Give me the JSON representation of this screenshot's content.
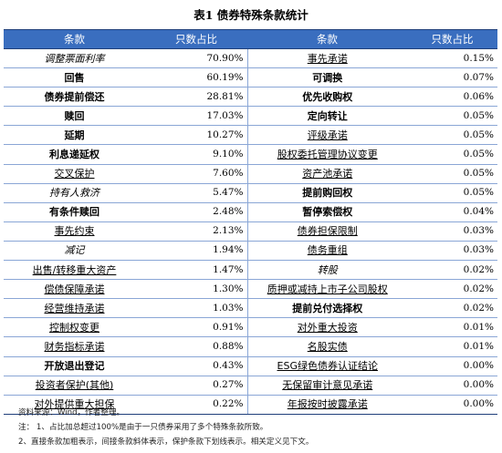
{
  "title": "表1   债券特殊条款统计",
  "headers": [
    "条款",
    "只数占比",
    "条款",
    "只数占比"
  ],
  "rows": [
    {
      "left": {
        "name": "调整票面利率",
        "pct": "70.90%",
        "style": "ital"
      },
      "right": {
        "name": "事先承诺",
        "pct": "0.15%",
        "style": "under"
      }
    },
    {
      "left": {
        "name": "回售",
        "pct": "60.19%",
        "style": "bold"
      },
      "right": {
        "name": "可调换",
        "pct": "0.07%",
        "style": "bold"
      }
    },
    {
      "left": {
        "name": "债券提前偿还",
        "pct": "28.81%",
        "style": "bold"
      },
      "right": {
        "name": "优先收购权",
        "pct": "0.06%",
        "style": "bold"
      }
    },
    {
      "left": {
        "name": "赎回",
        "pct": "17.03%",
        "style": "bold"
      },
      "right": {
        "name": "定向转让",
        "pct": "0.05%",
        "style": "bold"
      }
    },
    {
      "left": {
        "name": "延期",
        "pct": "10.27%",
        "style": "bold"
      },
      "right": {
        "name": "评级承诺",
        "pct": "0.05%",
        "style": "under"
      }
    },
    {
      "left": {
        "name": "利息递延权",
        "pct": "9.10%",
        "style": "bold"
      },
      "right": {
        "name": "股权委托管理协议变更",
        "pct": "0.05%",
        "style": "under"
      }
    },
    {
      "left": {
        "name": "交叉保护",
        "pct": "7.60%",
        "style": "under"
      },
      "right": {
        "name": "资产池承诺",
        "pct": "0.05%",
        "style": "under"
      }
    },
    {
      "left": {
        "name": "持有人救济",
        "pct": "5.47%",
        "style": "ital"
      },
      "right": {
        "name": "提前购回权",
        "pct": "0.05%",
        "style": "bold"
      }
    },
    {
      "left": {
        "name": "有条件赎回",
        "pct": "2.48%",
        "style": "bold"
      },
      "right": {
        "name": "暂停索偿权",
        "pct": "0.04%",
        "style": "bold"
      }
    },
    {
      "left": {
        "name": "事先约束",
        "pct": "2.13%",
        "style": "under"
      },
      "right": {
        "name": "债券担保限制",
        "pct": "0.03%",
        "style": "under"
      }
    },
    {
      "left": {
        "name": "减记",
        "pct": "1.94%",
        "style": "ital"
      },
      "right": {
        "name": "债务重组",
        "pct": "0.03%",
        "style": "under"
      }
    },
    {
      "left": {
        "name": "出售/转移重大资产",
        "pct": "1.47%",
        "style": "under"
      },
      "right": {
        "name": "转股",
        "pct": "0.02%",
        "style": "ital"
      }
    },
    {
      "left": {
        "name": "偿债保障承诺",
        "pct": "1.30%",
        "style": "under"
      },
      "right": {
        "name": "质押或减持上市子公司股权",
        "pct": "0.02%",
        "style": "under"
      }
    },
    {
      "left": {
        "name": "经营维持承诺",
        "pct": "1.03%",
        "style": "under"
      },
      "right": {
        "name": "提前兑付选择权",
        "pct": "0.02%",
        "style": "bold"
      }
    },
    {
      "left": {
        "name": "控制权变更",
        "pct": "0.91%",
        "style": "under"
      },
      "right": {
        "name": "对外重大投资",
        "pct": "0.01%",
        "style": "under"
      }
    },
    {
      "left": {
        "name": "财务指标承诺",
        "pct": "0.88%",
        "style": "under"
      },
      "right": {
        "name": "名股实债",
        "pct": "0.01%",
        "style": "under"
      }
    },
    {
      "left": {
        "name": "开放退出登记",
        "pct": "0.43%",
        "style": "bold"
      },
      "right": {
        "name": "ESG绿色债券认证结论",
        "pct": "0.00%",
        "style": "under"
      }
    },
    {
      "left": {
        "name": "投资者保护(其他)",
        "pct": "0.27%",
        "style": "under"
      },
      "right": {
        "name": "无保留审计意见承诺",
        "pct": "0.00%",
        "style": "under"
      }
    },
    {
      "left": {
        "name": "对外提供重大担保",
        "pct": "0.22%",
        "style": "under"
      },
      "right": {
        "name": "年报按时披露承诺",
        "pct": "0.00%",
        "style": "under"
      }
    }
  ],
  "notes": {
    "source": "资料来源：Wind，作者整理。",
    "note1": "注：  1、占比加总超过100%是由于一只债券采用了多个特殊条款所致。",
    "note2": "        2、直接条款加粗表示，间接条款斜体表示，保护条款下划线表示。相关定义见下文。"
  }
}
